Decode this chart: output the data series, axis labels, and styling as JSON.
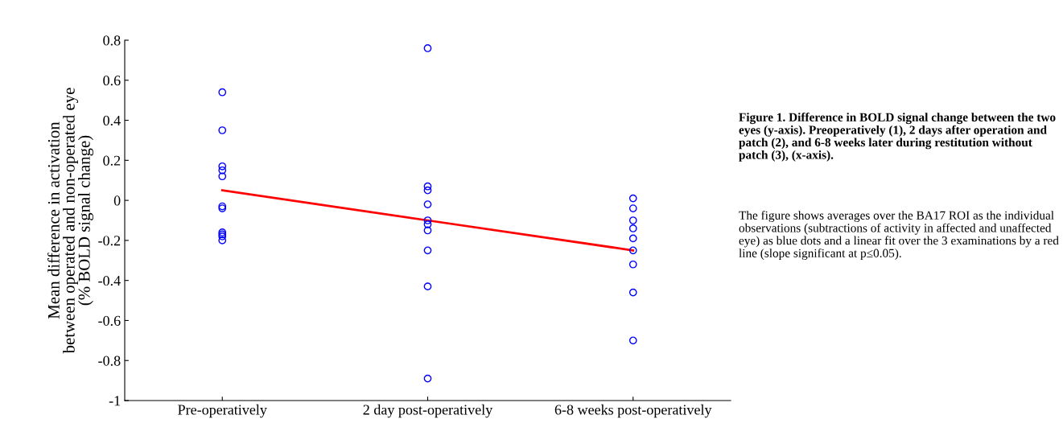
{
  "chart_data": {
    "type": "scatter",
    "title": "Figure 1. Difference in BOLD signal change between the two eyes (y-axis). Preoperatively (1), 2 days after operation and patch (2), and 6-8 weeks later during restitution without patch (3), (x-axis).",
    "ylabel": "Mean difference in activation\nbetween operated and non-operated eye\n(% BOLD signal change)",
    "annotations": [
      "The figure shows averages over the BA17 ROI as the individual observations (subtractions of activity in affected and unaffected eye) as blue dots and a linear fit over the 3 examinations by a red line (slope significant at p≤0.05)."
    ],
    "categories": [
      "Pre-operatively",
      "2 day post-operatively",
      "6-8 weeks post-operatively"
    ],
    "series": [
      {
        "color": "#0000ff",
        "marker": "circle",
        "x": [
          "Pre-operatively",
          "Pre-operatively",
          "Pre-operatively",
          "Pre-operatively",
          "Pre-operatively",
          "Pre-operatively",
          "Pre-operatively",
          "Pre-operatively",
          "Pre-operatively",
          "Pre-operatively",
          "Pre-operatively"
        ],
        "values": [
          0.54,
          0.35,
          0.17,
          0.15,
          0.12,
          -0.03,
          -0.04,
          -0.16,
          -0.17,
          -0.18,
          -0.2
        ]
      },
      {
        "color": "#0000ff",
        "marker": "circle",
        "x": [
          "2 day post-operatively",
          "2 day post-operatively",
          "2 day post-operatively",
          "2 day post-operatively",
          "2 day post-operatively",
          "2 day post-operatively",
          "2 day post-operatively",
          "2 day post-operatively",
          "2 day post-operatively",
          "2 day post-operatively"
        ],
        "values": [
          0.76,
          0.07,
          0.05,
          -0.02,
          -0.1,
          -0.12,
          -0.15,
          -0.25,
          -0.43,
          -0.89
        ]
      },
      {
        "color": "#0000ff",
        "marker": "circle",
        "x": [
          "6-8 weeks post-operatively",
          "6-8 weeks post-operatively",
          "6-8 weeks post-operatively",
          "6-8 weeks post-operatively",
          "6-8 weeks post-operatively",
          "6-8 weeks post-operatively",
          "6-8 weeks post-operatively",
          "6-8 weeks post-operatively",
          "6-8 weeks post-operatively"
        ],
        "values": [
          0.01,
          -0.04,
          -0.1,
          -0.14,
          -0.19,
          -0.25,
          -0.32,
          -0.46,
          -0.7
        ]
      },
      {
        "type": "line",
        "color": "#ff0000",
        "marker": "none",
        "line_style": "solid",
        "values": [
          0.05,
          -0.1,
          -0.25
        ]
      }
    ],
    "ylim": [
      -1,
      0.8
    ],
    "yticks": [
      -1,
      -0.8,
      -0.6,
      -0.4,
      -0.2,
      0,
      0.2,
      0.4,
      0.6,
      0.8
    ],
    "grid": false,
    "legend": false
  }
}
